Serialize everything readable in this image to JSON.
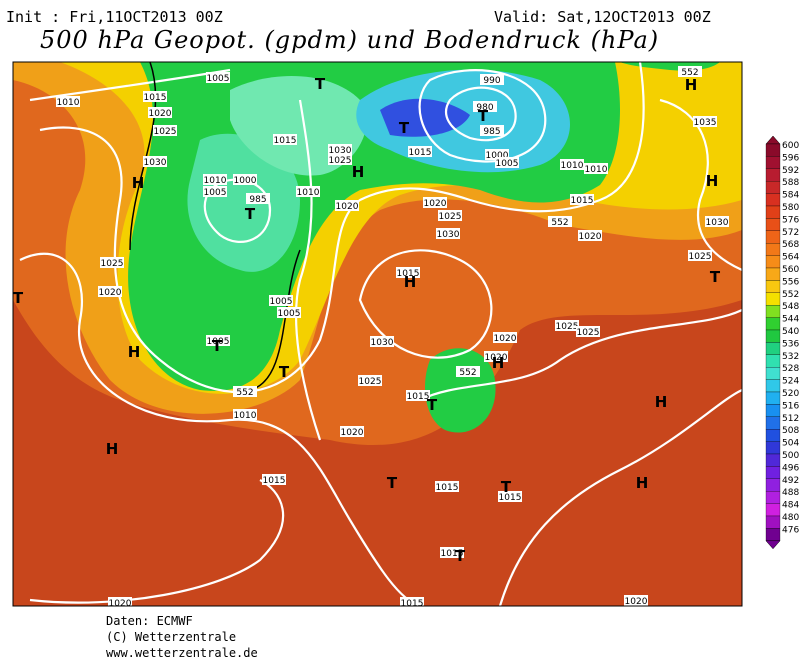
{
  "header": {
    "init": "Init : Fri,11OCT2013 00Z",
    "valid": "Valid: Sat,12OCT2013 00Z",
    "title": "500 hPa Geopot. (gpdm) und Bodendruck (hPa)"
  },
  "legend": {
    "levels": [
      "600",
      "596",
      "592",
      "588",
      "584",
      "580",
      "576",
      "572",
      "568",
      "564",
      "560",
      "556",
      "552",
      "548",
      "544",
      "540",
      "536",
      "532",
      "528",
      "524",
      "520",
      "516",
      "512",
      "508",
      "504",
      "500",
      "496",
      "492",
      "488",
      "484",
      "480",
      "476"
    ]
  },
  "map": {
    "pressure_labels": [
      "1005",
      "1010",
      "1015",
      "1020",
      "1025",
      "1030",
      "1015",
      "1030",
      "1025",
      "1010",
      "1000",
      "1005",
      "985",
      "1010",
      "1020",
      "990",
      "980",
      "985",
      "1000",
      "1005",
      "1015",
      "1010",
      "1010",
      "1015",
      "1035",
      "1020",
      "1030",
      "1025",
      "1020",
      "1025",
      "1030",
      "1025",
      "1020",
      "1015",
      "1005",
      "1005",
      "1005",
      "1030",
      "1025",
      "1025",
      "1025",
      "1020",
      "1020",
      "1015",
      "1010",
      "1020",
      "1015",
      "1015",
      "1015",
      "1015",
      "1015",
      "1020",
      "1020",
      "552",
      "552",
      "552",
      "552"
    ],
    "centers": [
      "H",
      "T",
      "T",
      "T",
      "H",
      "H",
      "H",
      "T",
      "H",
      "T",
      "T",
      "H",
      "T",
      "T",
      "H",
      "T",
      "H",
      "H",
      "T",
      "T",
      "H",
      "T"
    ]
  },
  "footer": {
    "lines": [
      "Daten: ECMWF",
      "(C) Wetterzentrale",
      "www.wetterzentrale.de"
    ]
  }
}
